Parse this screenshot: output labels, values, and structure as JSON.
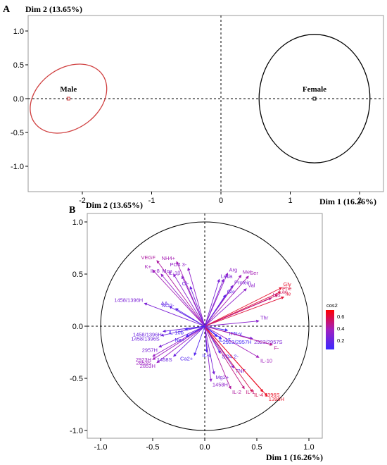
{
  "panelA": {
    "letter": "A",
    "xlabel": "Dim 1 (16.26%)",
    "ylabel": "Dim 2 (13.65%)",
    "xticks": [
      "-2",
      "-1",
      "0",
      "1",
      "2"
    ],
    "yticks": [
      "1.0",
      "0.5",
      "0.0",
      "-0.5",
      "-1.0"
    ],
    "groups": [
      {
        "name": "Male",
        "x": -2.2,
        "y": 0.0,
        "color": "#d04040"
      },
      {
        "name": "Female",
        "x": 1.35,
        "y": 0.0,
        "color": "#000000"
      }
    ]
  },
  "panelB": {
    "letter": "B",
    "xlabel": "Dim 1 (16.26%)",
    "ylabel": "Dim 2 (13.65%)",
    "xticks": [
      "-1.0",
      "-0.5",
      "0.0",
      "0.5",
      "1.0"
    ],
    "yticks": [
      "1.0",
      "0.5",
      "0.0",
      "-0.5",
      "-1.0"
    ],
    "legend": {
      "title": "cos2",
      "ticks": [
        "0.6",
        "0.4",
        "0.2"
      ]
    }
  },
  "chart_data": [
    {
      "type": "scatter",
      "title": "",
      "xlabel": "Dim 1 (16.26%)",
      "ylabel": "Dim 2 (13.65%)",
      "xlim": [
        -2.8,
        2.3
      ],
      "ylim": [
        -1.1,
        1.1
      ],
      "points": [
        {
          "label": "Male",
          "x": -2.2,
          "y": 0.0
        },
        {
          "label": "Female",
          "x": 1.35,
          "y": 0.0
        }
      ],
      "ellipses": [
        {
          "group": "Male",
          "cx": -2.2,
          "cy": 0.0,
          "rx": 0.6,
          "ry": 0.45,
          "color": "#d04040"
        },
        {
          "group": "Female",
          "cx": 1.35,
          "cy": 0.0,
          "rx": 0.8,
          "ry": 0.95,
          "color": "#000000"
        }
      ]
    },
    {
      "type": "scatter",
      "subtype": "variable-correlation-circle",
      "title": "",
      "xlabel": "Dim 1 (16.26%)",
      "ylabel": "Dim 2 (13.65%)",
      "xlim": [
        -1.1,
        1.1
      ],
      "ylim": [
        -1.1,
        1.1
      ],
      "color_scale": "cos2",
      "variables": [
        {
          "name": "VEGF",
          "x": -0.46,
          "y": 0.63,
          "cos2": 0.42
        },
        {
          "name": "NH4+",
          "x": -0.27,
          "y": 0.62,
          "cos2": 0.38
        },
        {
          "name": "K+",
          "x": -0.5,
          "y": 0.54,
          "cos2": 0.37
        },
        {
          "name": "PO4 3-",
          "x": -0.16,
          "y": 0.56,
          "cos2": 0.3
        },
        {
          "name": "IL-8",
          "x": -0.42,
          "y": 0.5,
          "cos2": 0.3
        },
        {
          "name": "Mcp",
          "x": -0.3,
          "y": 0.5,
          "cos2": 0.28
        },
        {
          "name": "IL-1β",
          "x": -0.22,
          "y": 0.48,
          "cos2": 0.27
        },
        {
          "name": "Cl-",
          "x": -0.14,
          "y": 0.38,
          "cos2": 0.17
        },
        {
          "name": "1458/1396H",
          "x": -0.58,
          "y": 0.22,
          "cos2": 0.23
        },
        {
          "name": "NO2-",
          "x": -0.28,
          "y": 0.17,
          "cos2": 0.12
        },
        {
          "name": "AA",
          "x": -0.34,
          "y": 0.19,
          "cos2": 0.14
        },
        {
          "name": "Arg",
          "x": 0.22,
          "y": 0.51,
          "cos2": 0.3
        },
        {
          "name": "Met",
          "x": 0.35,
          "y": 0.49,
          "cos2": 0.36
        },
        {
          "name": "Ser",
          "x": 0.42,
          "y": 0.48,
          "cos2": 0.38
        },
        {
          "name": "Ala",
          "x": 0.18,
          "y": 0.45,
          "cos2": 0.24
        },
        {
          "name": "Leu",
          "x": 0.14,
          "y": 0.45,
          "cos2": 0.22
        },
        {
          "name": "Protein",
          "x": 0.27,
          "y": 0.39,
          "cos2": 0.22
        },
        {
          "name": "Val",
          "x": 0.4,
          "y": 0.36,
          "cos2": 0.29
        },
        {
          "name": "Glc",
          "x": 0.2,
          "y": 0.3,
          "cos2": 0.13
        },
        {
          "name": "Gly",
          "x": 0.74,
          "y": 0.37,
          "cos2": 0.68
        },
        {
          "name": "Phe",
          "x": 0.73,
          "y": 0.33,
          "cos2": 0.64
        },
        {
          "name": "Lac",
          "x": 0.7,
          "y": 0.3,
          "cos2": 0.58
        },
        {
          "name": "Ile",
          "x": 0.76,
          "y": 0.28,
          "cos2": 0.66
        },
        {
          "name": "His",
          "x": 0.64,
          "y": 0.27,
          "cos2": 0.48
        },
        {
          "name": "Thr",
          "x": 0.52,
          "y": 0.05,
          "cos2": 0.27
        },
        {
          "name": "IFN-γ",
          "x": 0.22,
          "y": -0.04,
          "cos2": 0.05
        },
        {
          "name": "2923/2957H",
          "x": 0.16,
          "y": -0.12,
          "cos2": 0.04
        },
        {
          "name": "2923/2957S",
          "x": 0.46,
          "y": -0.12,
          "cos2": 0.23
        },
        {
          "name": "F-",
          "x": 0.65,
          "y": -0.18,
          "cos2": 0.45
        },
        {
          "name": "IL-10",
          "x": 0.52,
          "y": -0.3,
          "cos2": 0.36
        },
        {
          "name": "SO4 2-",
          "x": 0.15,
          "y": -0.26,
          "cos2": 0.09
        },
        {
          "name": "IL-6",
          "x": 0.02,
          "y": -0.25,
          "cos2": 0.06
        },
        {
          "name": "TNF",
          "x": 0.28,
          "y": -0.4,
          "cos2": 0.24
        },
        {
          "name": "Mg2+",
          "x": 0.09,
          "y": -0.46,
          "cos2": 0.22
        },
        {
          "name": "1458H",
          "x": 0.06,
          "y": -0.53,
          "cos2": 0.29
        },
        {
          "name": "IL-2",
          "x": 0.25,
          "y": -0.6,
          "cos2": 0.42
        },
        {
          "name": "IL-1",
          "x": 0.38,
          "y": -0.6,
          "cos2": 0.5
        },
        {
          "name": "IL-4",
          "x": 0.46,
          "y": -0.63,
          "cos2": 0.6
        },
        {
          "name": "1396S",
          "x": 0.56,
          "y": -0.63,
          "cos2": 0.7
        },
        {
          "name": "1396H",
          "x": 0.6,
          "y": -0.67,
          "cos2": 0.72
        },
        {
          "name": "IL-17",
          "x": 0.12,
          "y": -0.1,
          "cos2": 0.03
        },
        {
          "name": "1458/1396S",
          "x": -0.42,
          "y": -0.09,
          "cos2": 0.18
        },
        {
          "name": "1458/1396H",
          "x": -0.4,
          "y": -0.05,
          "cos2": 0.17
        },
        {
          "name": "2957H",
          "x": -0.44,
          "y": -0.2,
          "cos2": 0.23
        },
        {
          "name": "2923H",
          "x": -0.5,
          "y": -0.29,
          "cos2": 0.33
        },
        {
          "name": "2853S",
          "x": -0.5,
          "y": -0.32,
          "cos2": 0.35
        },
        {
          "name": "2853H",
          "x": -0.46,
          "y": -0.35,
          "cos2": 0.33
        },
        {
          "name": "1458S",
          "x": -0.3,
          "y": -0.29,
          "cos2": 0.17
        },
        {
          "name": "Ca2+",
          "x": -0.1,
          "y": -0.28,
          "cos2": 0.09
        },
        {
          "name": "Na+",
          "x": -0.18,
          "y": -0.1,
          "cos2": 0.04
        },
        {
          "name": "IL-10b",
          "x": -0.19,
          "y": -0.03,
          "cos2": 0.04
        }
      ]
    }
  ]
}
